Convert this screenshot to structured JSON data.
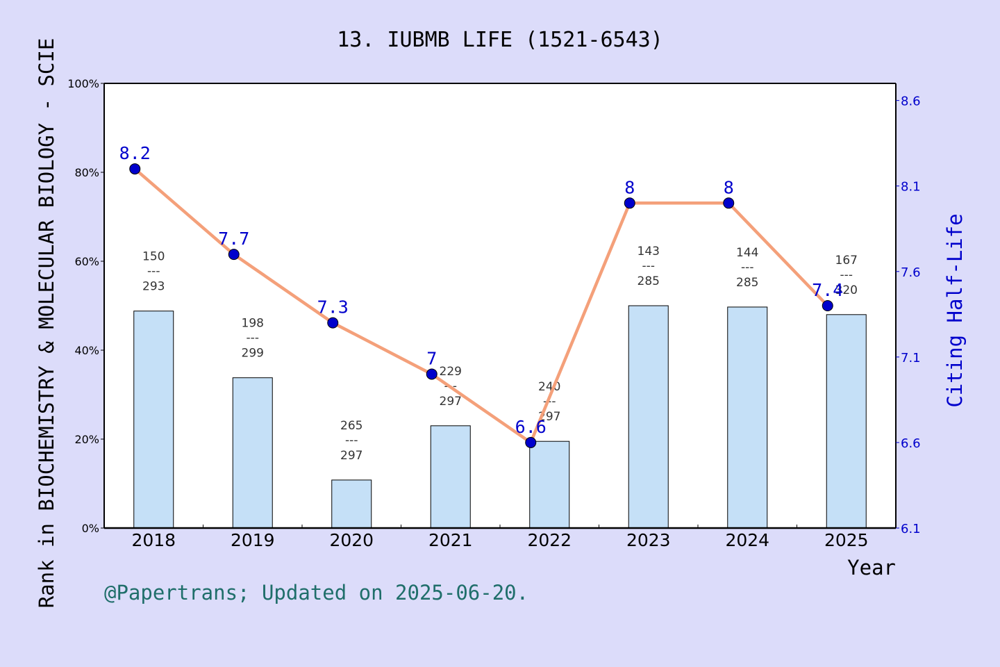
{
  "chart_data": {
    "type": "bar",
    "title": "13. IUBMB LIFE (1521-6543)",
    "xlabel": "Year",
    "ylabel": "Rank in BIOCHEMISTRY & MOLECULAR BIOLOGY - SCIE",
    "y2label": "Citing Half-Life",
    "categories": [
      "2018",
      "2019",
      "2020",
      "2021",
      "2022",
      "2023",
      "2024",
      "2025"
    ],
    "ylim": [
      0,
      100
    ],
    "yticks": [
      "0%",
      "20%",
      "40%",
      "60%",
      "80%",
      "100%"
    ],
    "y2lim": [
      6.1,
      8.7
    ],
    "y2ticks": [
      "6.1",
      "6.6",
      "7.1",
      "7.6",
      "8.1",
      "8.6"
    ],
    "series": [
      {
        "type": "bar",
        "values": [
          48.8,
          33.8,
          10.8,
          23.0,
          19.5,
          50.0,
          49.7,
          48.0
        ],
        "rank": [
          "150",
          "198",
          "265",
          "229",
          "240",
          "143",
          "144",
          "167"
        ],
        "total": [
          "293",
          "299",
          "297",
          "297",
          "297",
          "285",
          "285",
          "320"
        ],
        "separator": "---",
        "color": "#c5e0f7"
      },
      {
        "type": "line",
        "axis": "right",
        "values": [
          8.2,
          7.7,
          7.3,
          7,
          6.6,
          8,
          8,
          7.4
        ],
        "labels": [
          "8.2",
          "7.7",
          "7.3",
          "7",
          "6.6",
          "8",
          "8",
          "7.4"
        ],
        "line_color": "#f4a07a",
        "marker_color": "#0000cc"
      }
    ],
    "grid": false
  },
  "footer": "@Papertrans; Updated on 2025-06-20."
}
